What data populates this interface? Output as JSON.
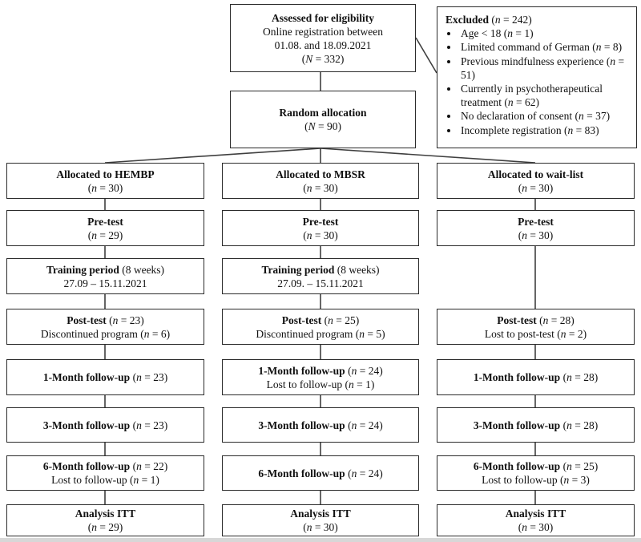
{
  "colors": {
    "background": "#ffffff",
    "box_border": "#2b2b2b",
    "connector_line": "#3f3f3f",
    "text": "#111111"
  },
  "figure": {
    "assessed": {
      "title": "Assessed for eligibility",
      "line2": "Online registration between",
      "line3": "01.08. and 18.09.2021",
      "line4": "(N = 332)"
    },
    "excluded": {
      "title": "Excluded",
      "title_rest": " (n = 242)",
      "items": [
        "Age < 18 (n = 1)",
        "Limited command of German (n = 8)",
        "Previous mindfulness experience (n = 51)",
        "Currently in psychotherapeutical treatment (n = 62)",
        "No declaration of consent (n = 37)",
        "Incomplete registration (n = 83)"
      ]
    },
    "random": {
      "title": "Random allocation",
      "line2": "(N = 90)"
    },
    "columns": [
      {
        "name": "HEMBP",
        "allocated": {
          "title": "Allocated to HEMBP",
          "line2": "(n = 30)"
        },
        "pretest": {
          "title": "Pre-test",
          "line2": "(n = 29)"
        },
        "training": {
          "title": "Training period",
          "title_rest": " (8 weeks)",
          "line2": "27.09 – 15.11.2021"
        },
        "posttest": {
          "title": "Post-test",
          "title_rest": " (n = 23)",
          "line2": "Discontinued program (n = 6)"
        },
        "followup1": {
          "title": "1-Month follow-up",
          "title_rest": " (n = 23)"
        },
        "followup3": {
          "title": "3-Month follow-up",
          "title_rest": " (n = 23)"
        },
        "followup6": {
          "title": "6-Month follow-up",
          "title_rest": " (n = 22)",
          "line2": "Lost to follow-up (n = 1)"
        },
        "analysis": {
          "title": "Analysis ITT",
          "line2": "(n = 29)"
        }
      },
      {
        "name": "MBSR",
        "allocated": {
          "title": "Allocated to MBSR",
          "line2": "(n = 30)"
        },
        "pretest": {
          "title": "Pre-test",
          "line2": "(n = 30)"
        },
        "training": {
          "title": "Training period",
          "title_rest": " (8 weeks)",
          "line2": "27.09. – 15.11.2021"
        },
        "posttest": {
          "title": "Post-test",
          "title_rest": " (n = 25)",
          "line2": "Discontinued program (n = 5)"
        },
        "followup1": {
          "title": "1-Month follow-up",
          "title_rest": " (n = 24)",
          "line2": "Lost to follow-up (n = 1)"
        },
        "followup3": {
          "title": "3-Month follow-up",
          "title_rest": " (n = 24)"
        },
        "followup6": {
          "title": "6-Month follow-up",
          "title_rest": " (n = 24)"
        },
        "analysis": {
          "title": "Analysis ITT",
          "line2": "(n = 30)"
        }
      },
      {
        "name": "wait-list",
        "allocated": {
          "title": "Allocated to wait-list",
          "line2": "(n = 30)"
        },
        "pretest": {
          "title": "Pre-test",
          "line2": "(n = 30)"
        },
        "posttest": {
          "title": "Post-test",
          "title_rest": " (n = 28)",
          "line2": "Lost to post-test (n = 2)"
        },
        "followup1": {
          "title": "1-Month follow-up",
          "title_rest": " (n = 28)"
        },
        "followup3": {
          "title": "3-Month follow-up",
          "title_rest": " (n = 28)"
        },
        "followup6": {
          "title": "6-Month follow-up",
          "title_rest": " (n = 25)",
          "line2": "Lost to follow-up (n = 3)"
        },
        "analysis": {
          "title": "Analysis ITT",
          "line2": "(n = 30)"
        }
      }
    ]
  }
}
